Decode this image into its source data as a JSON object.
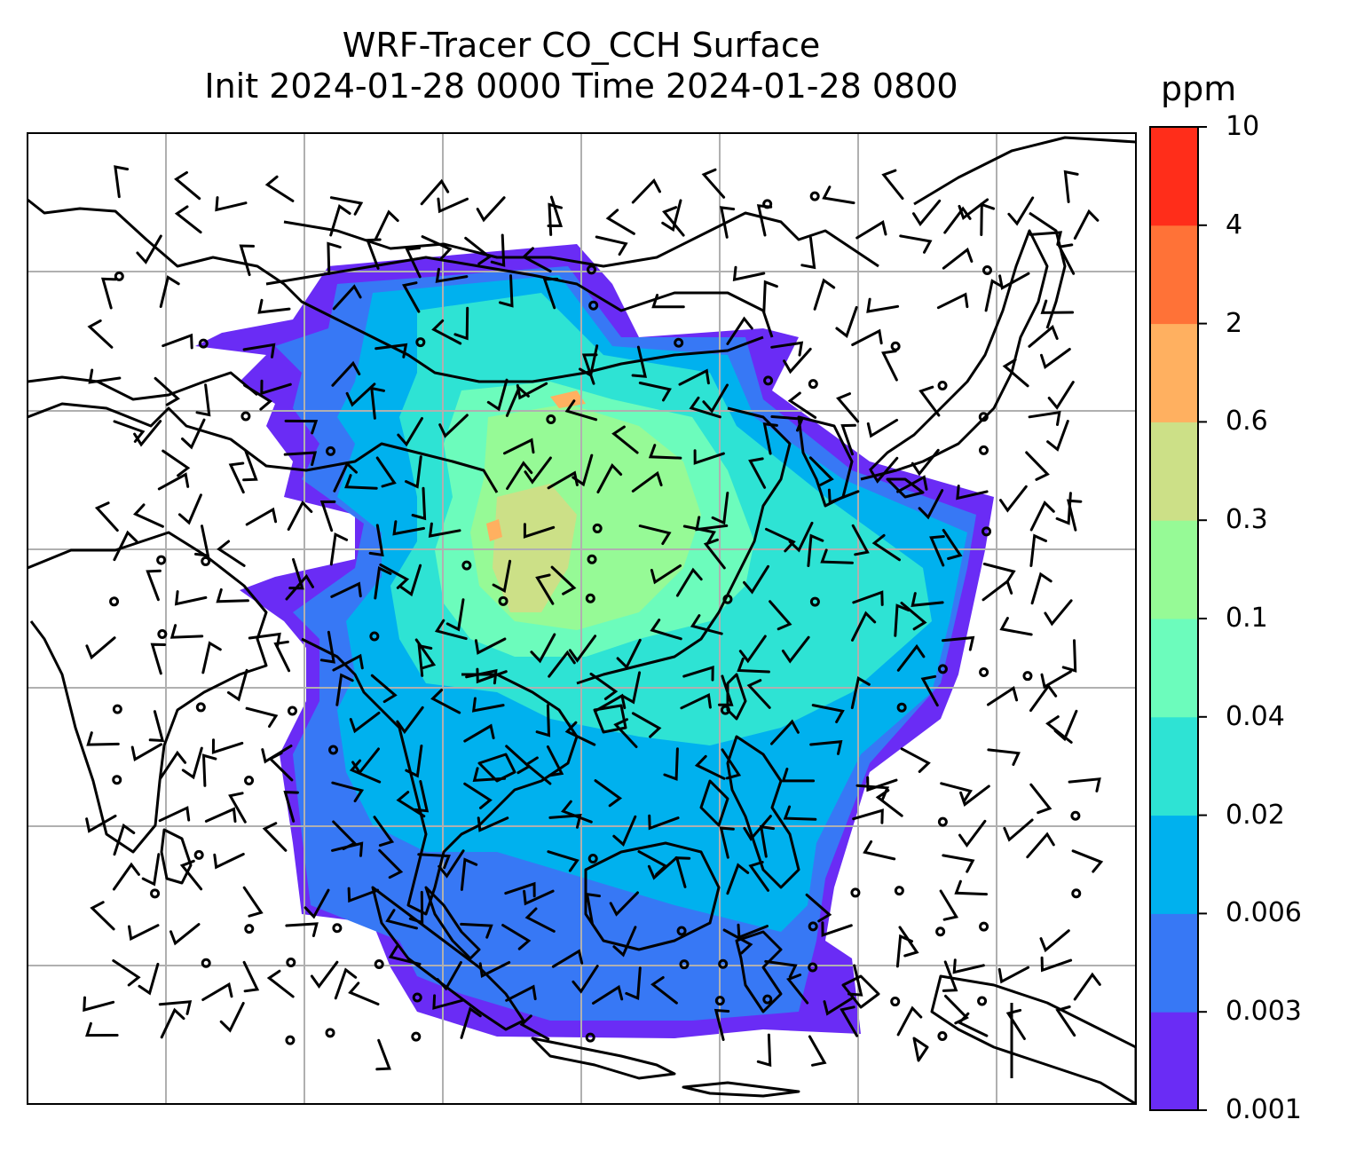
{
  "title": {
    "line1": "WRF-Tracer CO_CCH Surface",
    "line2": "Init 2024-01-28 0000 Time 2024-01-28 0800"
  },
  "colorbar": {
    "unit": "ppm",
    "ticks": [
      "0.001",
      "0.003",
      "0.006",
      "0.02",
      "0.04",
      "0.1",
      "0.3",
      "0.6",
      "2",
      "4",
      "10"
    ],
    "colors": [
      "#6a2cf5",
      "#3778f5",
      "#00b1ee",
      "#2ee3d4",
      "#6cfcbc",
      "#96fa96",
      "#cce087",
      "#ffb060",
      "#ff7237",
      "#ff2d1a"
    ]
  },
  "map": {
    "frame_color": "#000000",
    "gridline_color": "#b0b0b0",
    "coastline_color": "#000000",
    "barb_color": "#000000"
  }
}
